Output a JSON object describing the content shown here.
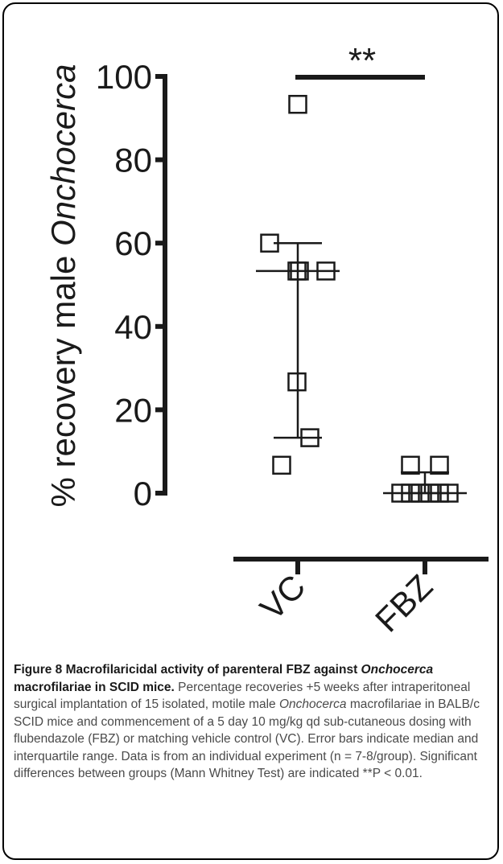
{
  "chart_data": {
    "type": "scatter",
    "title": "",
    "ylabel_prefix": "% recovery male ",
    "ylabel_italic": "Onchocerca",
    "ylim": [
      0,
      100
    ],
    "yticks": [
      0,
      20,
      40,
      60,
      80,
      100
    ],
    "categories": [
      "VC",
      "FBZ"
    ],
    "groups": [
      {
        "name": "VC",
        "values": [
          93.3,
          60,
          53.3,
          53.3,
          53.3,
          26.7,
          13.3,
          6.7
        ],
        "median": 53.3,
        "q1": 13.3,
        "q3": 60
      },
      {
        "name": "FBZ",
        "values": [
          6.7,
          6.7,
          0,
          0,
          0,
          0,
          0,
          0
        ],
        "median": 0,
        "q1": 0,
        "q3": 5
      }
    ],
    "significance": "**",
    "marker": "open-square",
    "color": "#1a1a1a"
  },
  "caption": {
    "heading": "Figure 8 Macrofilaricidal activity of parenteral FBZ against ",
    "heading_italic": "Onchocerca",
    "heading_end": " macrofilariae in SCID mice.",
    "body_1": " Percentage recoveries +5 weeks after intraperitoneal surgical implantation of 15 isolated, motile male ",
    "body_italic": "Onchocerca",
    "body_2": " macrofilariae in BALB/c SCID mice and commencement of a 5 day 10 mg/kg qd sub-cutaneous dosing with flubendazole (FBZ) or matching vehicle control (VC). Error bars indicate median and interquartile range. Data is from an individual experiment (n = 7-8/group). Significant differences between groups (Mann Whitney Test) are indicated **P < 0.01."
  }
}
